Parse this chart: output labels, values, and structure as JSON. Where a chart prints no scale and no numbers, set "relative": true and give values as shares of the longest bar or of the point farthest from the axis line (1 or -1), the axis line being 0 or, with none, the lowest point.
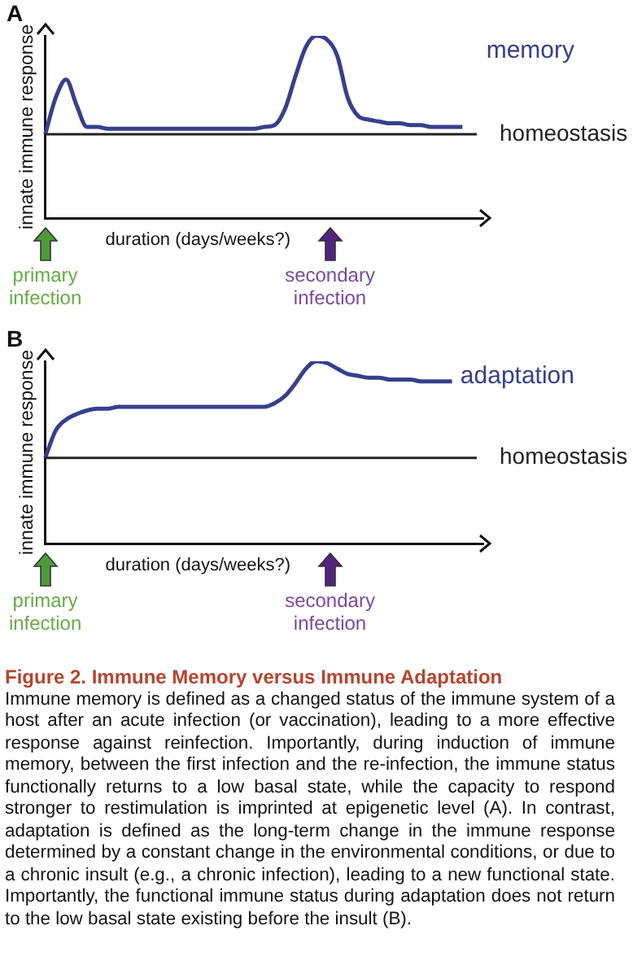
{
  "chart_data": [
    {
      "type": "line",
      "title": "A",
      "xlabel": "duration (days/weeks?)",
      "ylabel": "innate immune response",
      "relative": true,
      "categories": [
        null,
        null,
        null,
        null,
        null,
        null,
        null,
        null,
        null,
        null,
        null,
        null,
        null,
        null,
        null,
        null,
        null,
        null,
        null,
        null,
        null,
        null,
        null,
        null,
        null,
        null,
        null,
        null,
        null,
        null,
        null,
        null,
        null,
        null,
        null,
        null,
        null,
        null,
        null,
        null,
        null,
        null,
        null
      ],
      "series": [
        {
          "name": "memory",
          "color": "#35408c",
          "values": [
            0.46,
            0.66,
            0.76,
            0.62,
            0.5,
            0.5,
            0.49,
            0.49,
            0.49,
            0.49,
            0.49,
            0.49,
            0.49,
            0.49,
            0.49,
            0.49,
            0.49,
            0.49,
            0.49,
            0.49,
            0.49,
            0.5,
            0.51,
            0.6,
            0.78,
            0.94,
            1.0,
            0.98,
            0.89,
            0.66,
            0.56,
            0.54,
            0.53,
            0.52,
            0.52,
            0.51,
            0.51,
            0.5,
            0.5,
            0.5,
            0.5,
            null,
            null
          ]
        }
      ],
      "ref_lines": [
        {
          "axis": "y",
          "value": 0.46,
          "label": "homeostasis",
          "color": "#222222"
        }
      ],
      "annotations": [
        "primary infection",
        "secondary infection"
      ]
    },
    {
      "type": "line",
      "title": "B",
      "xlabel": "duration (days/weeks?)",
      "ylabel": "innate immune response",
      "relative": true,
      "categories": [
        null,
        null,
        null,
        null,
        null,
        null,
        null,
        null,
        null,
        null,
        null,
        null,
        null,
        null,
        null,
        null,
        null,
        null,
        null,
        null,
        null,
        null,
        null,
        null,
        null,
        null,
        null,
        null,
        null,
        null,
        null,
        null,
        null,
        null,
        null,
        null,
        null,
        null,
        null,
        null,
        null,
        null,
        null
      ],
      "series": [
        {
          "name": "adaptation",
          "color": "#35408c",
          "values": [
            0.47,
            0.62,
            0.68,
            0.71,
            0.73,
            0.74,
            0.74,
            0.75,
            0.75,
            0.75,
            0.75,
            0.75,
            0.75,
            0.75,
            0.75,
            0.75,
            0.75,
            0.75,
            0.75,
            0.75,
            0.75,
            0.75,
            0.77,
            0.81,
            0.88,
            0.96,
            1.0,
            0.99,
            0.96,
            0.93,
            0.92,
            0.91,
            0.91,
            0.9,
            0.9,
            0.9,
            0.89,
            0.89,
            0.89,
            0.89,
            null,
            null,
            null
          ]
        }
      ],
      "ref_lines": [
        {
          "axis": "y",
          "value": 0.47,
          "label": "homeostasis",
          "color": "#222222"
        }
      ],
      "annotations": [
        "primary infection",
        "secondary infection"
      ]
    },
    {
      "type": "other",
      "title": "Figure 2.  Immune Memory versus Immune Adaptation",
      "annotations": [
        "Immune memory is defined as a changed status of the immune system of a host after an acute infection (or vaccination), leading to a more effective response against reinfection. Importantly, during induction of immune memory, between the first infection and the re-infection, the immune status functionally returns to a low basal state, while the capacity to respond stronger to restimulation is imprinted at epigenetic level (A). In contrast, adaptation is defined as the long-term change in the immune response determined by a constant change in the environmental conditions, or due to a chronic insult (e.g., a chronic infection), leading to a new functional state. Importantly, the functional immune status during adaptation does not return to the low basal state existing before the insult (B)."
      ]
    }
  ]
}
